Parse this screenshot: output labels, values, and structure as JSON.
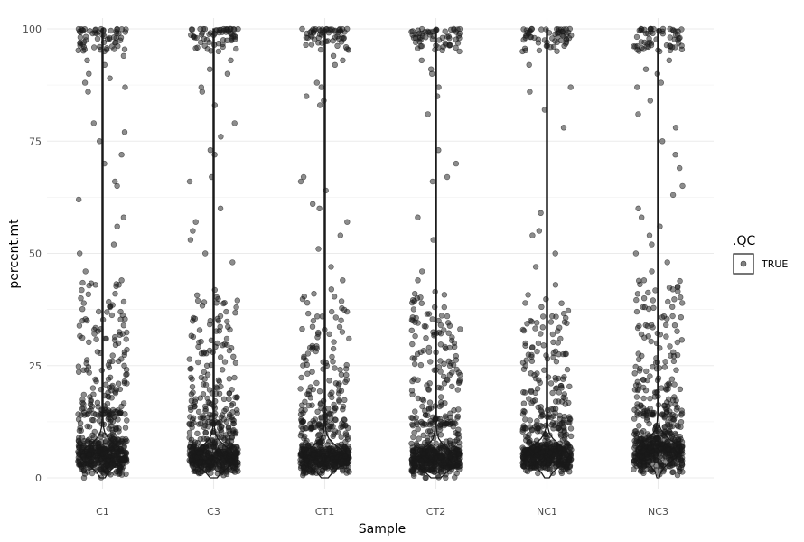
{
  "chart_data": {
    "type": "scatter",
    "subtype": "jitter-with-violin",
    "title": "",
    "xlabel": "Sample",
    "ylabel": "percent.mt",
    "categories": [
      "C1",
      "C3",
      "CT1",
      "CT2",
      "NC1",
      "NC3"
    ],
    "y_ticks": [
      0,
      25,
      50,
      75,
      100
    ],
    "ylim": [
      0,
      100
    ],
    "grid": true,
    "legend": {
      "title": ".QC",
      "entries": [
        {
          "label": "TRUE",
          "color": "#1a1a1a"
        }
      ],
      "placement": "right"
    },
    "point_color": "#1a1a1a",
    "groups": [
      {
        "category": "C1",
        "median": 5,
        "bulk_range": [
          1,
          14
        ],
        "points_above_bulk": [
          15,
          18,
          20,
          22,
          24,
          26,
          28,
          30,
          31,
          33,
          35,
          37,
          38,
          40,
          41,
          43,
          44,
          46,
          50,
          52,
          56,
          58,
          62,
          65,
          66,
          70,
          72,
          75,
          77,
          79,
          86,
          87,
          88,
          89,
          90,
          92,
          93,
          94,
          95,
          96,
          97,
          98,
          98,
          99
        ]
      },
      {
        "category": "C3",
        "median": 4.5,
        "bulk_range": [
          1,
          12
        ],
        "points_above_bulk": [
          14,
          16,
          18,
          20,
          22,
          23,
          25,
          27,
          28,
          30,
          31,
          33,
          35,
          37,
          38,
          39,
          48,
          50,
          53,
          55,
          57,
          60,
          66,
          67,
          72,
          73,
          76,
          79,
          83,
          86,
          87,
          90,
          91,
          93,
          95,
          96,
          97,
          98,
          99
        ]
      },
      {
        "category": "CT1",
        "median": 4.5,
        "bulk_range": [
          1,
          11
        ],
        "points_above_bulk": [
          13,
          15,
          17,
          19,
          21,
          23,
          25,
          27,
          29,
          31,
          33,
          35,
          37,
          39,
          41,
          42,
          44,
          47,
          51,
          54,
          57,
          60,
          61,
          64,
          66,
          67,
          83,
          84,
          85,
          87,
          88,
          92,
          93,
          94,
          98,
          99
        ]
      },
      {
        "category": "CT2",
        "median": 4,
        "bulk_range": [
          1,
          12
        ],
        "points_above_bulk": [
          14,
          16,
          18,
          20,
          22,
          24,
          26,
          28,
          30,
          32,
          34,
          35,
          36,
          38,
          40,
          41,
          44,
          46,
          53,
          58,
          66,
          67,
          70,
          73,
          81,
          85,
          87,
          90,
          91,
          93,
          95,
          96,
          97,
          98,
          99
        ]
      },
      {
        "category": "NC1",
        "median": 5,
        "bulk_range": [
          1,
          11
        ],
        "points_above_bulk": [
          13,
          15,
          17,
          19,
          20,
          22,
          24,
          25,
          27,
          29,
          30,
          32,
          33,
          35,
          36,
          43,
          47,
          50,
          54,
          55,
          59,
          78,
          82,
          86,
          87,
          92,
          95,
          97,
          98,
          99
        ]
      },
      {
        "category": "NC3",
        "median": 6,
        "bulk_range": [
          1,
          14
        ],
        "points_above_bulk": [
          16,
          18,
          20,
          22,
          24,
          26,
          28,
          30,
          32,
          34,
          36,
          38,
          40,
          42,
          44,
          46,
          48,
          50,
          52,
          54,
          56,
          58,
          60,
          63,
          65,
          69,
          72,
          75,
          78,
          81,
          84,
          87,
          88,
          90,
          91,
          93,
          95,
          96,
          97,
          98,
          99
        ]
      }
    ]
  }
}
